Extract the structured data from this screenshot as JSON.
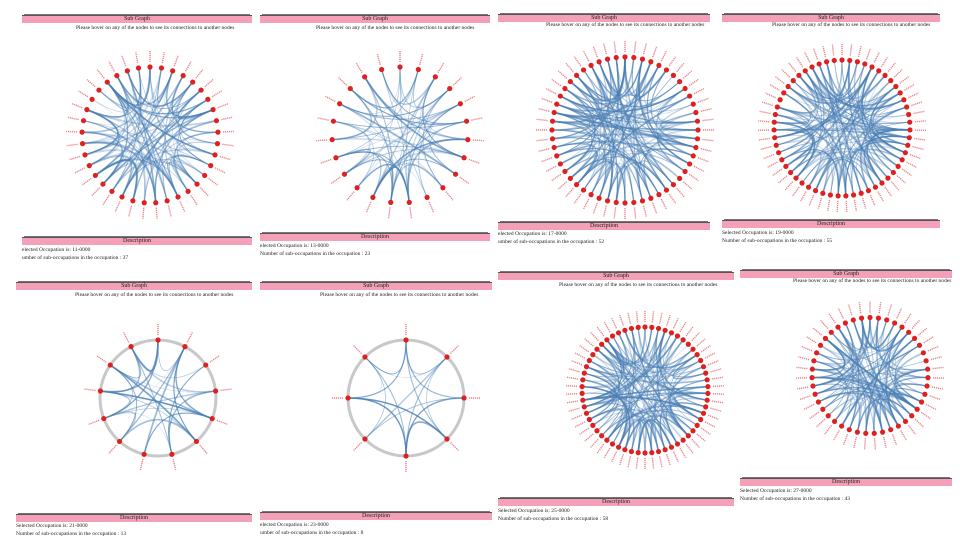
{
  "titles": {
    "subgraph": "Sub Graph",
    "description": "Description"
  },
  "hint": "Please hover on any of the nodes to see its connections to another nodes",
  "colors": {
    "bar": "#f5a0b8",
    "node": "#e01f1f",
    "edge": "#4a7fb5",
    "label": "#e8606a",
    "ring": "#c8c8c8"
  },
  "panels": [
    {
      "id": "p11",
      "occupation": "11-0000",
      "subCount": 37,
      "selected_text": "elected Occupation is: 11-0000",
      "count_text": "umber of sub-occupations in the occupation : 37"
    },
    {
      "id": "p13",
      "occupation": "13-0000",
      "subCount": 23,
      "selected_text": "elected Occupation is: 13-0000",
      "count_text": "Number of sub-occupations in the occupation : 23"
    },
    {
      "id": "p17",
      "occupation": "17-0000",
      "subCount": 52,
      "selected_text": "elected Occupation is: 17-0000",
      "count_text": "umber of sub-occupations in the occupation : 52"
    },
    {
      "id": "p19",
      "occupation": "19-0000",
      "subCount": 55,
      "selected_text": "Selected Occupation is: 19-0000",
      "count_text": "Number of sub-occupations in the occupation : 55"
    },
    {
      "id": "p21",
      "occupation": "21-0000",
      "subCount": 13,
      "selected_text": "Selected Occupation is: 21-0000",
      "count_text": "Number of sub-occupations in the occupation : 13"
    },
    {
      "id": "p23",
      "occupation": "23-0000",
      "subCount": 8,
      "selected_text": "elected Occupation is: 23-0000",
      "count_text": "umber of sub-occupations in the occupation : 8"
    },
    {
      "id": "p25",
      "occupation": "25-0000",
      "subCount": 58,
      "selected_text": "Selected Occupation is: 25-0000",
      "count_text": "Number of sub-occupations in the occupation : 58"
    },
    {
      "id": "p27",
      "occupation": "27-0000",
      "subCount": 43,
      "selected_text": "Selected Occupation is: 27-0000",
      "count_text": "Number of sub-occupations in the occupation : 43"
    }
  ]
}
